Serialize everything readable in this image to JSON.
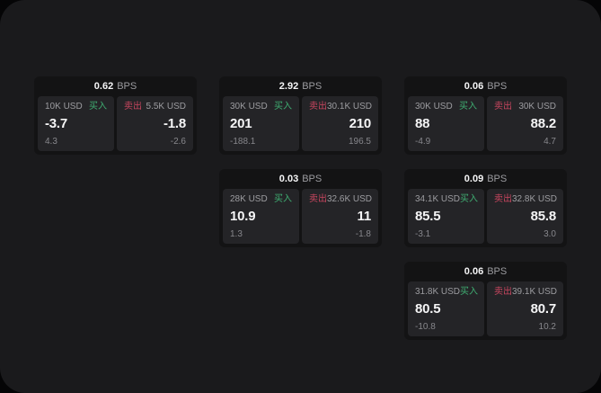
{
  "labels": {
    "bps_unit": "BPS",
    "buy": "买入",
    "sell": "卖出"
  },
  "colors": {
    "page_bg": "#050506",
    "window_bg": "#1a1a1c",
    "card_bg": "#131314",
    "panel_bg": "#242427",
    "buy_green": "#3fae72",
    "sell_red": "#c8465f",
    "text_primary": "#f5f5f6",
    "text_secondary": "#9c9ca0",
    "text_muted": "#87878c"
  },
  "cards": [
    {
      "bps": "0.62",
      "col": 1,
      "row": 1,
      "buy": {
        "amount": "10K USD",
        "price": "-3.7",
        "change": "4.3"
      },
      "sell": {
        "amount": "5.5K USD",
        "price": "-1.8",
        "change": "-2.6"
      }
    },
    {
      "bps": "2.92",
      "col": 2,
      "row": 1,
      "buy": {
        "amount": "30K USD",
        "price": "201",
        "change": "-188.1"
      },
      "sell": {
        "amount": "30.1K USD",
        "price": "210",
        "change": "196.5"
      }
    },
    {
      "bps": "0.06",
      "col": 3,
      "row": 1,
      "buy": {
        "amount": "30K USD",
        "price": "88",
        "change": "-4.9"
      },
      "sell": {
        "amount": "30K USD",
        "price": "88.2",
        "change": "4.7"
      }
    },
    {
      "bps": "0.03",
      "col": 2,
      "row": 2,
      "buy": {
        "amount": "28K USD",
        "price": "10.9",
        "change": "1.3"
      },
      "sell": {
        "amount": "32.6K USD",
        "price": "11",
        "change": "-1.8"
      }
    },
    {
      "bps": "0.09",
      "col": 3,
      "row": 2,
      "buy": {
        "amount": "34.1K USD",
        "price": "85.5",
        "change": "-3.1"
      },
      "sell": {
        "amount": "32.8K USD",
        "price": "85.8",
        "change": "3.0"
      }
    },
    {
      "bps": "0.06",
      "col": 3,
      "row": 3,
      "buy": {
        "amount": "31.8K USD",
        "price": "80.5",
        "change": "-10.8"
      },
      "sell": {
        "amount": "39.1K USD",
        "price": "80.7",
        "change": "10.2"
      }
    }
  ]
}
